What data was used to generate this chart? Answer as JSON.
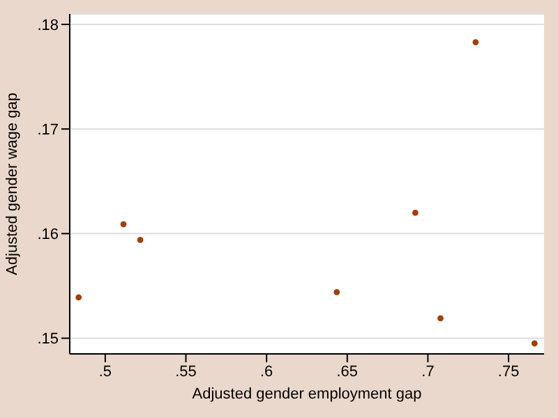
{
  "chart_data": {
    "type": "scatter",
    "xlabel": "Adjusted gender employment gap",
    "ylabel": "Adjusted gender wage gap",
    "x": [
      0.4835,
      0.5113,
      0.5217,
      0.6435,
      0.6922,
      0.7078,
      0.7296,
      0.7661
    ],
    "values": [
      0.1539,
      0.1609,
      0.1594,
      0.1544,
      0.162,
      0.1519,
      0.1783,
      0.1495
    ],
    "color": "#a23f0c",
    "marker": "circle",
    "xlim": [
      0.478,
      0.772
    ],
    "xticks": [
      {
        "value": 0.5,
        "label": ".5"
      },
      {
        "value": 0.55,
        "label": ".55"
      },
      {
        "value": 0.6,
        "label": ".6"
      },
      {
        "value": 0.65,
        "label": ".65"
      },
      {
        "value": 0.7,
        "label": ".7"
      },
      {
        "value": 0.75,
        "label": ".75"
      }
    ],
    "ylim": [
      0.1485,
      0.181
    ],
    "yticks": [
      {
        "value": 0.15,
        "label": ".15"
      },
      {
        "value": 0.16,
        "label": ".16"
      },
      {
        "value": 0.17,
        "label": ".17"
      },
      {
        "value": 0.18,
        "label": ".18"
      }
    ],
    "grid": "y"
  }
}
